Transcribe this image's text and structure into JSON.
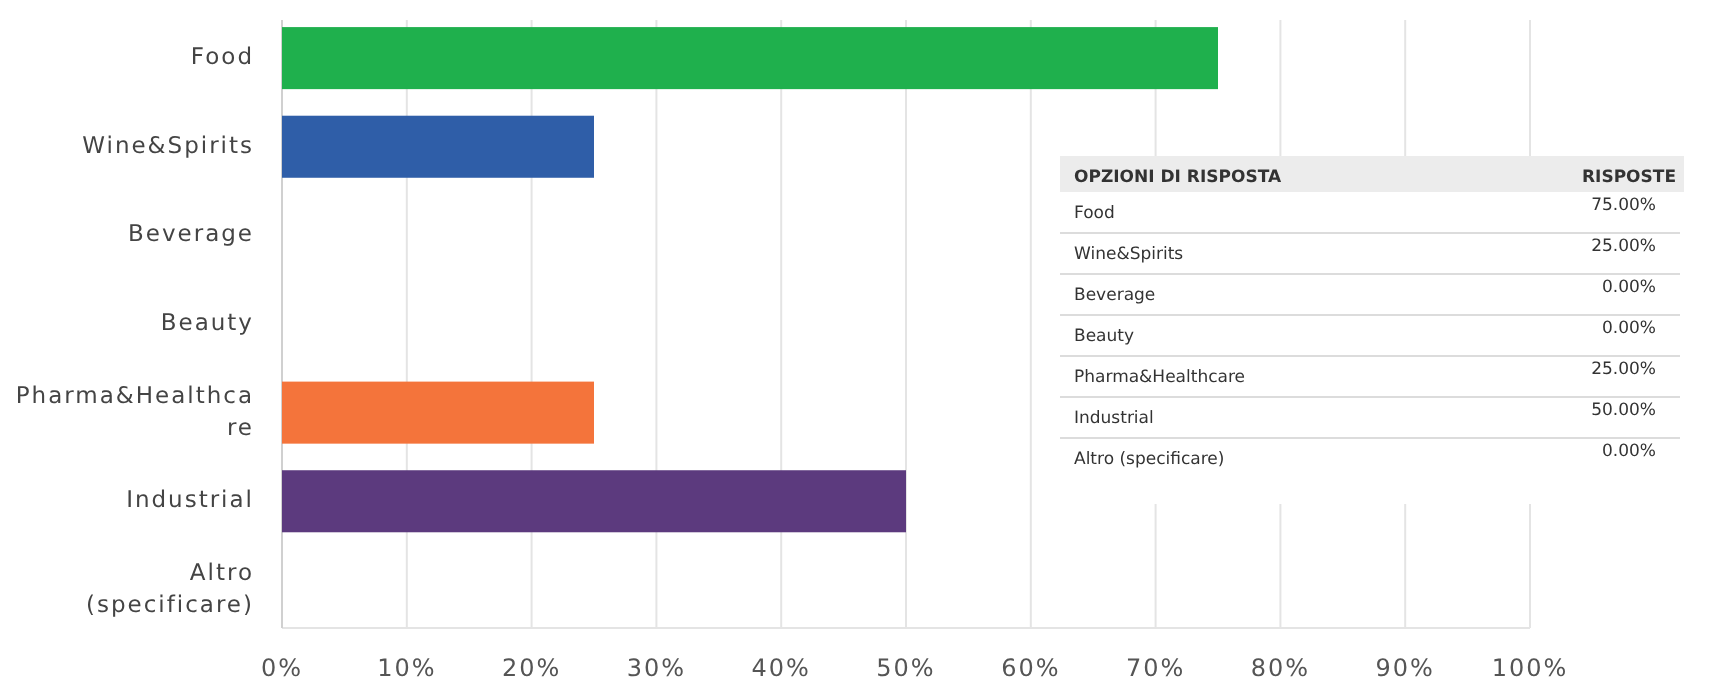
{
  "chart_data": [
    {
      "type": "bar",
      "orientation": "horizontal",
      "categories": [
        "Food",
        "Wine&Spirits",
        "Beverage",
        "Beauty",
        "Pharma&Healthcare",
        "Industrial",
        "Altro (specificare)"
      ],
      "values": [
        75,
        25,
        0,
        0,
        25,
        50,
        0
      ],
      "colors": [
        "#1fb04d",
        "#2f5ea8",
        "#8e8e8e",
        "#8e8e8e",
        "#f4743b",
        "#5c3a7e",
        "#8e8e8e"
      ],
      "xlim": [
        0,
        100
      ],
      "xticks": [
        {
          "value": 0,
          "label": "0%"
        },
        {
          "value": 10,
          "label": "10%"
        },
        {
          "value": 20,
          "label": "20%"
        },
        {
          "value": 30,
          "label": "30%"
        },
        {
          "value": 40,
          "label": "40%"
        },
        {
          "value": 50,
          "label": "50%"
        },
        {
          "value": 60,
          "label": "60%"
        },
        {
          "value": 70,
          "label": "70%"
        },
        {
          "value": 80,
          "label": "80%"
        },
        {
          "value": 90,
          "label": "90%"
        },
        {
          "value": 100,
          "label": "100%"
        }
      ],
      "grid": "x"
    },
    {
      "type": "other",
      "annotations": [
        "OPZIONI DI RISPOSTA",
        "RISPOSTE",
        "Food",
        "75.00%",
        "Wine&Spirits",
        "25.00%",
        "Beverage",
        "0.00%",
        "Beauty",
        "0.00%",
        "Pharma&Healthcare",
        "25.00%",
        "Industrial",
        "50.00%",
        "Altro (specificare)",
        "0.00%"
      ]
    }
  ]
}
